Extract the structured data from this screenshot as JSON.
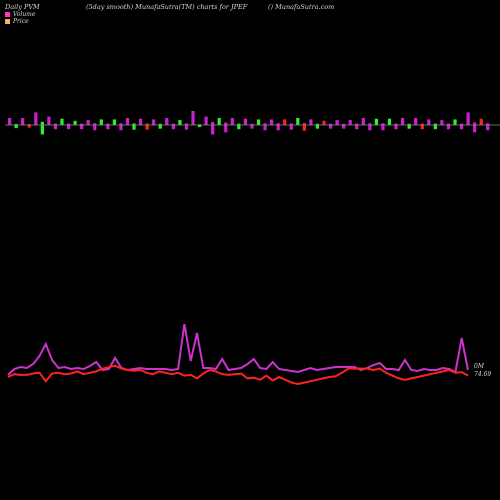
{
  "header": {
    "left": "Daily PVM",
    "center": "(5day smooth) MunafaSutra(TM) charts for JPEF",
    "right": "() MunafaSutra.com"
  },
  "legend": [
    {
      "label": "Volume",
      "color": "#ff33cc"
    },
    {
      "label": "Price",
      "color": "#ffaa66"
    }
  ],
  "colors": {
    "background": "#000000",
    "volume_up": "#cc22cc",
    "volume_down": "#33ee33",
    "volume_neg": "#ff2222",
    "volume_line": "#cc33cc",
    "price_line": "#ff2222",
    "axis": "#888888"
  },
  "chart_data": [
    {
      "type": "bar",
      "name": "volume-bars",
      "values": [
        0.5,
        -0.3,
        0.5,
        -0.25,
        0.9,
        -0.9,
        0.6,
        0.4,
        -0.45,
        0.4,
        -0.3,
        0.4,
        0.35,
        0.5,
        -0.4,
        0.4,
        -0.4,
        0.5,
        0.5,
        -0.45,
        0.45,
        -0.45,
        0.4,
        -0.35,
        0.5,
        0.4,
        -0.35,
        0.45,
        1.0,
        -0.2,
        0.6,
        0.9,
        -0.5,
        0.7,
        0.5,
        -0.4,
        0.45,
        0.35,
        -0.4,
        0.5,
        0.4,
        0.5,
        -0.4,
        0.45,
        -0.5,
        -0.55,
        0.4,
        -0.35,
        -0.3,
        0.35,
        0.35,
        0.35,
        0.35,
        0.4,
        0.5,
        0.5,
        -0.45,
        0.5,
        -0.45,
        0.4,
        0.5,
        -0.35,
        0.5,
        -0.4,
        0.4,
        -0.4,
        0.35,
        0.4,
        -0.4,
        0.4,
        0.9,
        0.7,
        -0.45,
        0.5
      ]
    },
    {
      "type": "line",
      "name": "volume-line",
      "values": [
        1,
        7,
        9,
        8,
        12,
        20,
        32,
        16,
        8,
        9,
        7,
        8,
        7,
        10,
        14,
        6,
        7,
        18,
        8,
        6,
        7,
        8,
        7,
        7,
        7,
        7,
        6,
        7,
        52,
        15,
        43,
        8,
        8,
        7,
        17,
        6,
        7,
        8,
        12,
        17,
        8,
        7,
        14,
        7,
        6,
        5,
        4,
        6,
        8,
        6,
        7,
        8,
        9,
        9,
        9,
        9,
        6,
        8,
        11,
        13,
        7,
        7,
        6,
        16,
        6,
        5,
        7,
        6,
        6,
        8,
        7,
        4,
        38,
        6
      ]
    },
    {
      "type": "line",
      "name": "price-line",
      "values": [
        0,
        2,
        1.5,
        1.5,
        2.5,
        3,
        -3,
        2.5,
        3,
        2,
        2.5,
        4,
        2,
        3,
        4,
        6,
        7,
        8,
        6,
        5,
        4.5,
        5,
        3,
        2,
        4,
        3,
        2,
        3,
        1,
        1.5,
        -1,
        2.5,
        5,
        4,
        2,
        1.5,
        2,
        2.5,
        -1,
        -0.5,
        -2,
        1,
        -2.5,
        0,
        -2,
        -4,
        -5,
        -4,
        -3,
        -2,
        -1,
        0,
        0.5,
        3,
        6,
        6,
        6,
        6,
        5,
        6,
        3,
        1,
        -1,
        -2,
        -1,
        0,
        1,
        2,
        3,
        4,
        5,
        3,
        3.5,
        1
      ]
    }
  ],
  "annotations": {
    "volume_label": "0M",
    "price_label": "74.69"
  }
}
